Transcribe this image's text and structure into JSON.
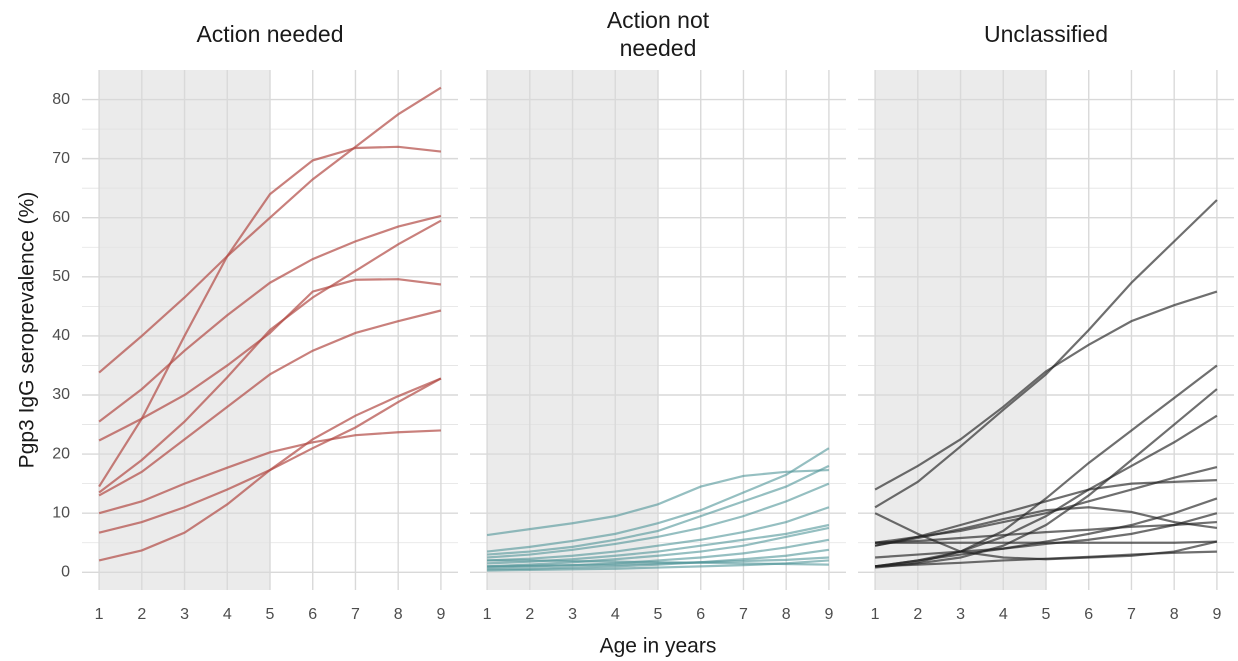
{
  "chart_data": [
    {
      "type": "line",
      "title": "Action needed",
      "ylabel": "Pgp3 IgG seroprevalence (%)",
      "show_ytick_labels": true,
      "x": [
        1,
        2,
        3,
        4,
        5,
        6,
        7,
        8,
        9
      ],
      "xlim": [
        0.6,
        9.4
      ],
      "xticks": [
        1,
        2,
        3,
        4,
        5,
        6,
        7,
        8,
        9
      ],
      "ylim": [
        -3,
        85
      ],
      "yticks": [
        0,
        10,
        20,
        30,
        40,
        50,
        60,
        70,
        80
      ],
      "yminor": [
        5,
        15,
        25,
        35,
        45,
        55,
        65,
        75
      ],
      "shade_x": [
        1,
        5
      ],
      "grid": true,
      "opacity": 0.7,
      "series": [
        {
          "color": "#b24a44",
          "values": [
            33.8,
            40,
            46.5,
            53.5,
            60,
            66.5,
            72,
            77.5,
            82
          ]
        },
        {
          "color": "#b24a44",
          "values": [
            14.5,
            26,
            40,
            53.5,
            64,
            69.7,
            71.8,
            72,
            71.2
          ]
        },
        {
          "color": "#b24a44",
          "values": [
            25.5,
            31,
            37.5,
            43.5,
            49,
            53,
            56,
            58.5,
            60.3
          ]
        },
        {
          "color": "#b24a44",
          "values": [
            13.5,
            19,
            25.5,
            33,
            41,
            46.5,
            51,
            55.5,
            59.5
          ]
        },
        {
          "color": "#b24a44",
          "values": [
            22.3,
            26,
            30,
            35,
            40.5,
            47.5,
            49.5,
            49.6,
            48.7
          ]
        },
        {
          "color": "#b24a44",
          "values": [
            13,
            17,
            22.5,
            28,
            33.5,
            37.5,
            40.5,
            42.5,
            44.3
          ]
        },
        {
          "color": "#b24a44",
          "values": [
            10,
            12,
            15,
            17.7,
            20.3,
            22,
            23.2,
            23.7,
            24
          ]
        },
        {
          "color": "#b24a44",
          "values": [
            6.7,
            8.5,
            11,
            14,
            17.3,
            21,
            24.5,
            28.8,
            32.8
          ]
        },
        {
          "color": "#b24a44",
          "values": [
            2,
            3.7,
            6.7,
            11.5,
            17.3,
            22.5,
            26.5,
            29.8,
            32.8
          ]
        }
      ]
    },
    {
      "type": "line",
      "title": "Action not\nneeded",
      "xlabel": "Age in years",
      "show_ytick_labels": false,
      "x": [
        1,
        2,
        3,
        4,
        5,
        6,
        7,
        8,
        9
      ],
      "xlim": [
        0.6,
        9.4
      ],
      "xticks": [
        1,
        2,
        3,
        4,
        5,
        6,
        7,
        8,
        9
      ],
      "ylim": [
        -3,
        85
      ],
      "yticks": [
        0,
        10,
        20,
        30,
        40,
        50,
        60,
        70,
        80
      ],
      "yminor": [
        5,
        15,
        25,
        35,
        45,
        55,
        65,
        75
      ],
      "shade_x": [
        1,
        5
      ],
      "grid": true,
      "opacity": 0.6,
      "series": [
        {
          "color": "#4f9498",
          "values": [
            6.3,
            7.3,
            8.3,
            9.5,
            11.5,
            14.5,
            16.3,
            17,
            17.3
          ]
        },
        {
          "color": "#4f9498",
          "values": [
            3.5,
            4.3,
            5.3,
            6.5,
            8.3,
            10.5,
            13.5,
            16.5,
            21
          ]
        },
        {
          "color": "#4f9498",
          "values": [
            3,
            3.5,
            4.3,
            5.5,
            7,
            9.5,
            12,
            14.5,
            18
          ]
        },
        {
          "color": "#4f9498",
          "values": [
            2.5,
            3,
            3.8,
            4.8,
            6,
            7.5,
            9.5,
            12,
            15
          ]
        },
        {
          "color": "#4f9498",
          "values": [
            2,
            2.3,
            2.8,
            3.5,
            4.5,
            5.5,
            6.8,
            8.5,
            11
          ]
        },
        {
          "color": "#4f9498",
          "values": [
            1.5,
            1.8,
            2.2,
            2.8,
            3.5,
            4.5,
            5.5,
            6.5,
            8
          ]
        },
        {
          "color": "#4f9498",
          "values": [
            1,
            1.3,
            1.7,
            2.2,
            2.8,
            3.5,
            4.5,
            6,
            7.5
          ]
        },
        {
          "color": "#4f9498",
          "values": [
            0.8,
            1,
            1.2,
            1.5,
            2,
            2.5,
            3.2,
            4.2,
            5.5
          ]
        },
        {
          "color": "#4f9498",
          "values": [
            0.5,
            0.6,
            0.8,
            1,
            1.3,
            1.7,
            2.2,
            2.8,
            3.8
          ]
        },
        {
          "color": "#4f9498",
          "values": [
            1,
            1.1,
            1.2,
            1.3,
            1.5,
            1.7,
            1.9,
            2.1,
            2.5
          ]
        },
        {
          "color": "#4f9498",
          "values": [
            0.3,
            0.4,
            0.5,
            0.6,
            0.8,
            1,
            1.2,
            1.5,
            2
          ]
        },
        {
          "color": "#4f9498",
          "values": [
            2,
            2,
            1.9,
            1.8,
            1.7,
            1.6,
            1.5,
            1.4,
            1.3
          ]
        }
      ]
    },
    {
      "type": "line",
      "title": "Unclassified",
      "show_ytick_labels": false,
      "x": [
        1,
        2,
        3,
        4,
        5,
        6,
        7,
        8,
        9
      ],
      "xlim": [
        0.6,
        9.4
      ],
      "xticks": [
        1,
        2,
        3,
        4,
        5,
        6,
        7,
        8,
        9
      ],
      "ylim": [
        -3,
        85
      ],
      "yticks": [
        0,
        10,
        20,
        30,
        40,
        50,
        60,
        70,
        80
      ],
      "yminor": [
        5,
        15,
        25,
        35,
        45,
        55,
        65,
        75
      ],
      "shade_x": [
        1,
        5
      ],
      "grid": true,
      "opacity": 0.65,
      "series": [
        {
          "color": "#222222",
          "values": [
            14,
            18,
            22.5,
            28,
            34,
            38.5,
            42.5,
            45.2,
            47.5
          ]
        },
        {
          "color": "#222222",
          "values": [
            11,
            15.3,
            21.3,
            27.5,
            33.5,
            41,
            49,
            56,
            63
          ]
        },
        {
          "color": "#222222",
          "values": [
            10,
            6.5,
            3.5,
            2.5,
            2.2,
            2.5,
            2.8,
            3.5,
            5.2
          ]
        },
        {
          "color": "#222222",
          "values": [
            1,
            1.7,
            3.5,
            7,
            12.5,
            18.5,
            24,
            29.5,
            35
          ]
        },
        {
          "color": "#222222",
          "values": [
            0.8,
            1.5,
            2.5,
            4.5,
            8,
            13,
            19,
            25,
            31
          ]
        },
        {
          "color": "#222222",
          "values": [
            1,
            2,
            3.5,
            6,
            9.5,
            14,
            18,
            22,
            26.5
          ]
        },
        {
          "color": "#222222",
          "values": [
            4.5,
            6,
            8,
            10,
            12,
            14,
            15,
            15.3,
            15.6
          ]
        },
        {
          "color": "#222222",
          "values": [
            5,
            6,
            7,
            8.5,
            10,
            12,
            14,
            16,
            17.8
          ]
        },
        {
          "color": "#222222",
          "values": [
            4.5,
            5.8,
            7.3,
            9,
            10.5,
            11,
            10.2,
            8.5,
            7.5
          ]
        },
        {
          "color": "#222222",
          "values": [
            1,
            2,
            3,
            4,
            5.2,
            6.5,
            8,
            10,
            12.5
          ]
        },
        {
          "color": "#222222",
          "values": [
            2.5,
            3,
            3.5,
            4,
            4.8,
            5.5,
            6.5,
            8,
            10
          ]
        },
        {
          "color": "#222222",
          "values": [
            5,
            5.3,
            5.8,
            6.3,
            6.8,
            7.2,
            7.7,
            8,
            8.5
          ]
        },
        {
          "color": "#222222",
          "values": [
            1,
            1.3,
            1.6,
            2,
            2.3,
            2.6,
            3,
            3.3,
            3.5
          ]
        },
        {
          "color": "#222222",
          "values": [
            5,
            5,
            5,
            5,
            5,
            5,
            5,
            5,
            5.2
          ]
        }
      ]
    }
  ]
}
